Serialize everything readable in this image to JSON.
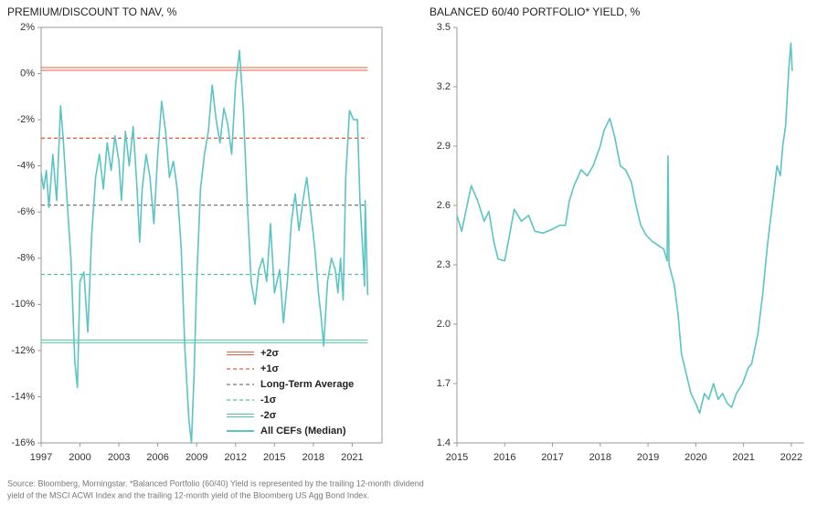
{
  "chart_data": [
    {
      "type": "line",
      "title": "PREMIUM/DISCOUNT TO NAV, %",
      "frame": true,
      "legend": "bottom",
      "xlim": [
        1997,
        2023.3
      ],
      "xticks": [
        1997,
        2000,
        2003,
        2006,
        2009,
        2012,
        2015,
        2018,
        2021
      ],
      "ylim": [
        -16,
        2
      ],
      "yticks": [
        {
          "value": -16,
          "label": "-16%"
        },
        {
          "value": -14,
          "label": "-14%"
        },
        {
          "value": -12,
          "label": "-12%"
        },
        {
          "value": -10,
          "label": "-10%"
        },
        {
          "value": -8,
          "label": "-8%"
        },
        {
          "value": -6,
          "label": "-6%"
        },
        {
          "value": -4,
          "label": "-4%"
        },
        {
          "value": -2,
          "label": "-2%"
        },
        {
          "value": 0,
          "label": "0%"
        },
        {
          "value": 2,
          "label": "2%"
        }
      ],
      "reference_lines": [
        {
          "name": "+2σ",
          "value": 0.2,
          "color": "#e8603c",
          "style": "double"
        },
        {
          "name": "+1σ",
          "value": -2.8,
          "color": "#e8603c",
          "style": "dashed"
        },
        {
          "name": "Long-Term Average",
          "value": -5.7,
          "color": "#777777",
          "style": "dashed"
        },
        {
          "name": "-1σ",
          "value": -8.7,
          "color": "#4fc4a0",
          "style": "dashed"
        },
        {
          "name": "-2σ",
          "value": -11.6,
          "color": "#4fc4a0",
          "style": "double"
        }
      ],
      "series": [
        {
          "name": "All CEFs (Median)",
          "color": "#5bc4c4",
          "x": [
            1997.0,
            1997.2,
            1997.4,
            1997.6,
            1997.9,
            1998.2,
            1998.5,
            1998.7,
            1999.0,
            1999.3,
            1999.6,
            1999.8,
            2000.0,
            2000.3,
            2000.6,
            2000.9,
            2001.2,
            2001.5,
            2001.8,
            2002.1,
            2002.4,
            2002.7,
            2003.0,
            2003.2,
            2003.5,
            2003.8,
            2004.1,
            2004.4,
            2004.6,
            2004.8,
            2005.1,
            2005.4,
            2005.7,
            2006.0,
            2006.3,
            2006.6,
            2006.9,
            2007.2,
            2007.5,
            2007.8,
            2008.1,
            2008.4,
            2008.6,
            2008.8,
            2009.0,
            2009.3,
            2009.6,
            2009.9,
            2010.2,
            2010.5,
            2010.8,
            2011.1,
            2011.4,
            2011.7,
            2012.0,
            2012.3,
            2012.6,
            2012.9,
            2013.2,
            2013.5,
            2013.8,
            2014.1,
            2014.4,
            2014.7,
            2015.0,
            2015.4,
            2015.7,
            2016.0,
            2016.3,
            2016.6,
            2016.9,
            2017.2,
            2017.5,
            2017.8,
            2018.1,
            2018.4,
            2018.6,
            2018.8,
            2019.1,
            2019.4,
            2019.7,
            2019.9,
            2020.1,
            2020.3,
            2020.5,
            2020.8,
            2021.1,
            2021.4,
            2021.6,
            2021.8,
            2021.95,
            2022.0,
            2022.2
          ],
          "values": [
            -4.3,
            -5.0,
            -4.2,
            -5.8,
            -3.5,
            -5.5,
            -1.4,
            -2.8,
            -5.5,
            -8.0,
            -12.5,
            -13.6,
            -9.0,
            -8.6,
            -11.2,
            -7.0,
            -4.5,
            -3.5,
            -5.0,
            -3.0,
            -4.2,
            -2.7,
            -3.8,
            -5.5,
            -2.5,
            -4.0,
            -2.3,
            -5.0,
            -7.3,
            -5.0,
            -3.5,
            -4.5,
            -6.5,
            -3.5,
            -1.2,
            -2.5,
            -4.5,
            -3.8,
            -5.0,
            -7.5,
            -12.0,
            -15.0,
            -16.0,
            -13.0,
            -9.0,
            -5.0,
            -3.5,
            -2.5,
            -0.5,
            -2.0,
            -3.0,
            -1.5,
            -2.2,
            -3.5,
            -0.5,
            1.0,
            -1.5,
            -5.5,
            -9.0,
            -10.0,
            -8.5,
            -8.0,
            -9.0,
            -6.5,
            -9.5,
            -8.5,
            -10.8,
            -9.0,
            -6.5,
            -5.2,
            -6.8,
            -5.5,
            -4.5,
            -6.0,
            -7.5,
            -9.5,
            -10.5,
            -11.8,
            -9.0,
            -8.0,
            -8.5,
            -9.5,
            -8.0,
            -9.8,
            -4.5,
            -1.6,
            -2.0,
            -2.0,
            -5.5,
            -7.5,
            -9.2,
            -5.5,
            -9.6
          ]
        }
      ]
    },
    {
      "type": "line",
      "title": "BALANCED 60/40 PORTFOLIO* YIELD, %",
      "frame": false,
      "xlim": [
        2015,
        2022.27
      ],
      "xticks": [
        2015,
        2016,
        2017,
        2018,
        2019,
        2020,
        2021,
        2022
      ],
      "ylim": [
        1.4,
        3.5
      ],
      "yticks": [
        1.4,
        1.7,
        {
          "value": 2,
          "label": "2.0"
        },
        2.3,
        2.6,
        2.9,
        3.2,
        3.5
      ],
      "series": [
        {
          "name": "Balanced 60/40 Portfolio Yield",
          "color": "#5bc4c4",
          "x": [
            2015.0,
            2015.1,
            2015.23,
            2015.3,
            2015.44,
            2015.57,
            2015.67,
            2015.77,
            2015.86,
            2016.0,
            2016.1,
            2016.2,
            2016.35,
            2016.5,
            2016.63,
            2016.8,
            2017.0,
            2017.15,
            2017.27,
            2017.35,
            2017.45,
            2017.6,
            2017.73,
            2017.85,
            2018.0,
            2018.08,
            2018.2,
            2018.3,
            2018.42,
            2018.53,
            2018.65,
            2018.75,
            2018.85,
            2018.96,
            2019.08,
            2019.2,
            2019.33,
            2019.4,
            2019.42,
            2019.44,
            2019.55,
            2019.63,
            2019.7,
            2019.8,
            2019.9,
            2020.0,
            2020.08,
            2020.18,
            2020.27,
            2020.37,
            2020.47,
            2020.56,
            2020.66,
            2020.75,
            2020.85,
            2020.98,
            2021.1,
            2021.17,
            2021.3,
            2021.4,
            2021.5,
            2021.6,
            2021.7,
            2021.77,
            2021.82,
            2021.88,
            2021.95,
            2021.99,
            2022.02
          ],
          "values": [
            2.55,
            2.47,
            2.62,
            2.7,
            2.62,
            2.52,
            2.57,
            2.42,
            2.33,
            2.32,
            2.45,
            2.58,
            2.52,
            2.55,
            2.47,
            2.46,
            2.48,
            2.5,
            2.5,
            2.62,
            2.7,
            2.78,
            2.75,
            2.8,
            2.9,
            2.98,
            3.04,
            2.95,
            2.8,
            2.78,
            2.72,
            2.6,
            2.5,
            2.45,
            2.42,
            2.4,
            2.38,
            2.32,
            2.85,
            2.3,
            2.2,
            2.05,
            1.85,
            1.75,
            1.65,
            1.6,
            1.55,
            1.65,
            1.62,
            1.7,
            1.62,
            1.65,
            1.6,
            1.58,
            1.65,
            1.7,
            1.78,
            1.8,
            1.95,
            2.15,
            2.4,
            2.6,
            2.8,
            2.75,
            2.9,
            3.0,
            3.3,
            3.42,
            3.28
          ]
        }
      ]
    }
  ],
  "source_note": [
    "Source: Bloomberg, Morningstar. *Balanced Portfolio (60/40) Yield is represented by the trailing 12-month dividend",
    "yield of the MSCI ACWI Index and the trailing 12-month yield of the Bloomberg US Agg Bond Index."
  ]
}
